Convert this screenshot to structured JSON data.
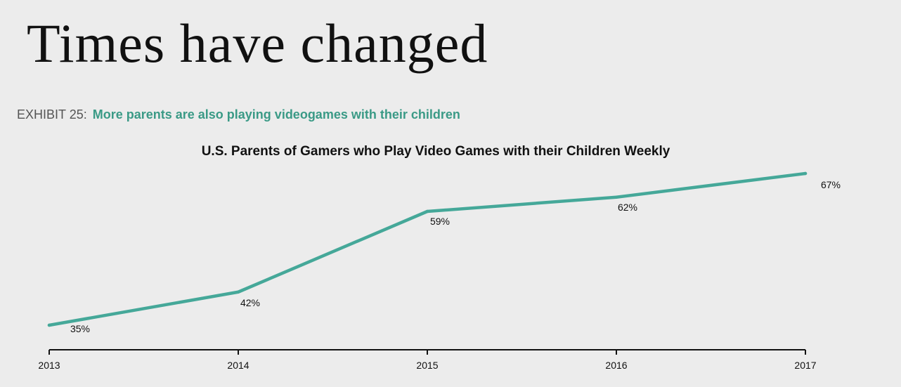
{
  "slide": {
    "title": "Times have changed"
  },
  "exhibit": {
    "label": "EXHIBIT 25:",
    "caption": "More parents are also playing videogames with their children"
  },
  "chart_data": {
    "type": "line",
    "title": "U.S. Parents of Gamers who Play Video Games with their Children Weekly",
    "xlabel": "",
    "ylabel": "",
    "x": [
      "2013",
      "2014",
      "2015",
      "2016",
      "2017"
    ],
    "series": [
      {
        "values": [
          35,
          42,
          59,
          62,
          67
        ],
        "labels": [
          "35%",
          "42%",
          "59%",
          "62%",
          "67%"
        ],
        "color": "#45a899"
      }
    ],
    "ylim": [
      30,
      70
    ],
    "grid": false,
    "legend": "none",
    "axis_color": "#111111"
  }
}
